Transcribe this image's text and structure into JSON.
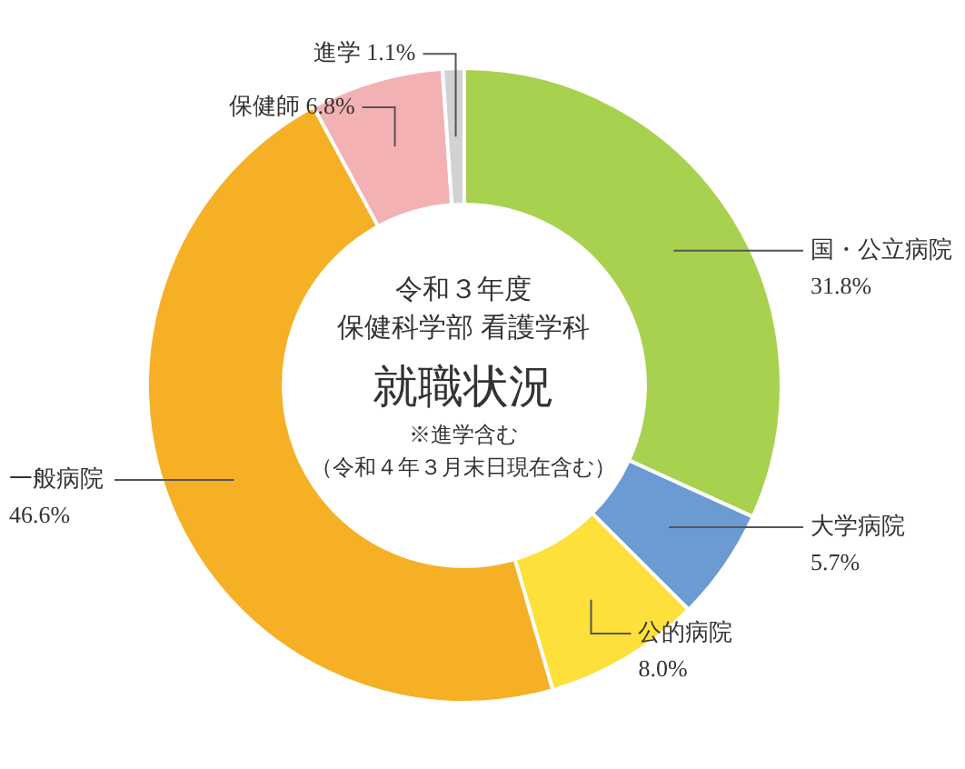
{
  "chart_data": {
    "type": "donut",
    "title": "就職状況",
    "subtitle": "令和３年度",
    "annotations": [
      "保健科学部 看護学科",
      "※進学含む",
      "（令和４年３月末日現在含む）"
    ],
    "categories": [
      "国・公立病院",
      "大学病院",
      "公的病院",
      "一般病院",
      "保健師",
      "進学"
    ],
    "values": [
      31.8,
      5.7,
      8.0,
      46.6,
      6.8,
      1.1
    ],
    "value_labels": [
      "31.8%",
      "5.7%",
      "8.0%",
      "46.6%",
      "6.8%",
      "1.1%"
    ],
    "colors": [
      "#a8d14f",
      "#6b9bd2",
      "#fde03a",
      "#f6b026",
      "#f4b1b3",
      "#d2d2d2"
    ],
    "legend": false
  }
}
